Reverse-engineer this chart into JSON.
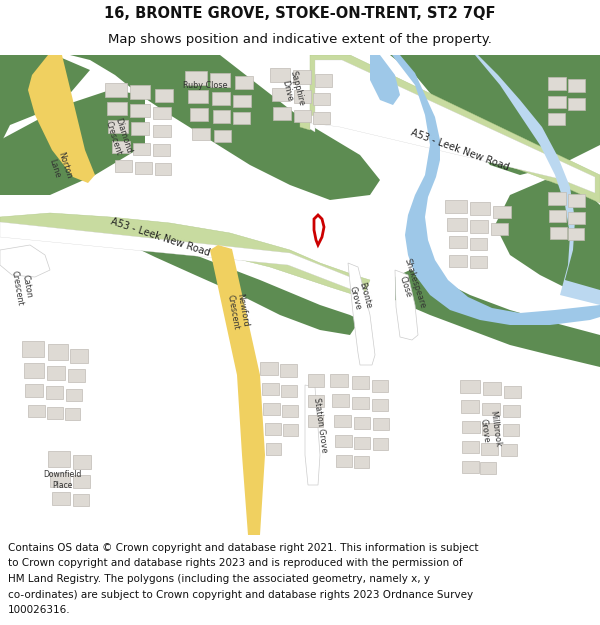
{
  "title_line1": "16, BRONTE GROVE, STOKE-ON-TRENT, ST2 7QF",
  "title_line2": "Map shows position and indicative extent of the property.",
  "footer_lines": [
    "Contains OS data © Crown copyright and database right 2021. This information is subject",
    "to Crown copyright and database rights 2023 and is reproduced with the permission of",
    "HM Land Registry. The polygons (including the associated geometry, namely x, y",
    "co-ordinates) are subject to Crown copyright and database rights 2023 Ordnance Survey",
    "100026316."
  ],
  "title_fontsize": 10.5,
  "subtitle_fontsize": 9.5,
  "footer_fontsize": 7.5,
  "fig_width": 6.0,
  "fig_height": 6.25,
  "bg_white": "#ffffff",
  "map_bg": "#f2f0ed",
  "green_dark": "#5d8c52",
  "green_road": "#c8dba0",
  "green_road_edge": "#b0c888",
  "building_fill": "#dedad4",
  "building_edge": "#c0bbb4",
  "water_blue": "#9ec8e8",
  "water_light": "#bbd8f0",
  "road_yellow": "#f0d060",
  "road_white": "#ffffff",
  "road_edge": "#cccccc",
  "marker_red": "#cc0000",
  "text_dark": "#222222",
  "text_road": "#333333"
}
